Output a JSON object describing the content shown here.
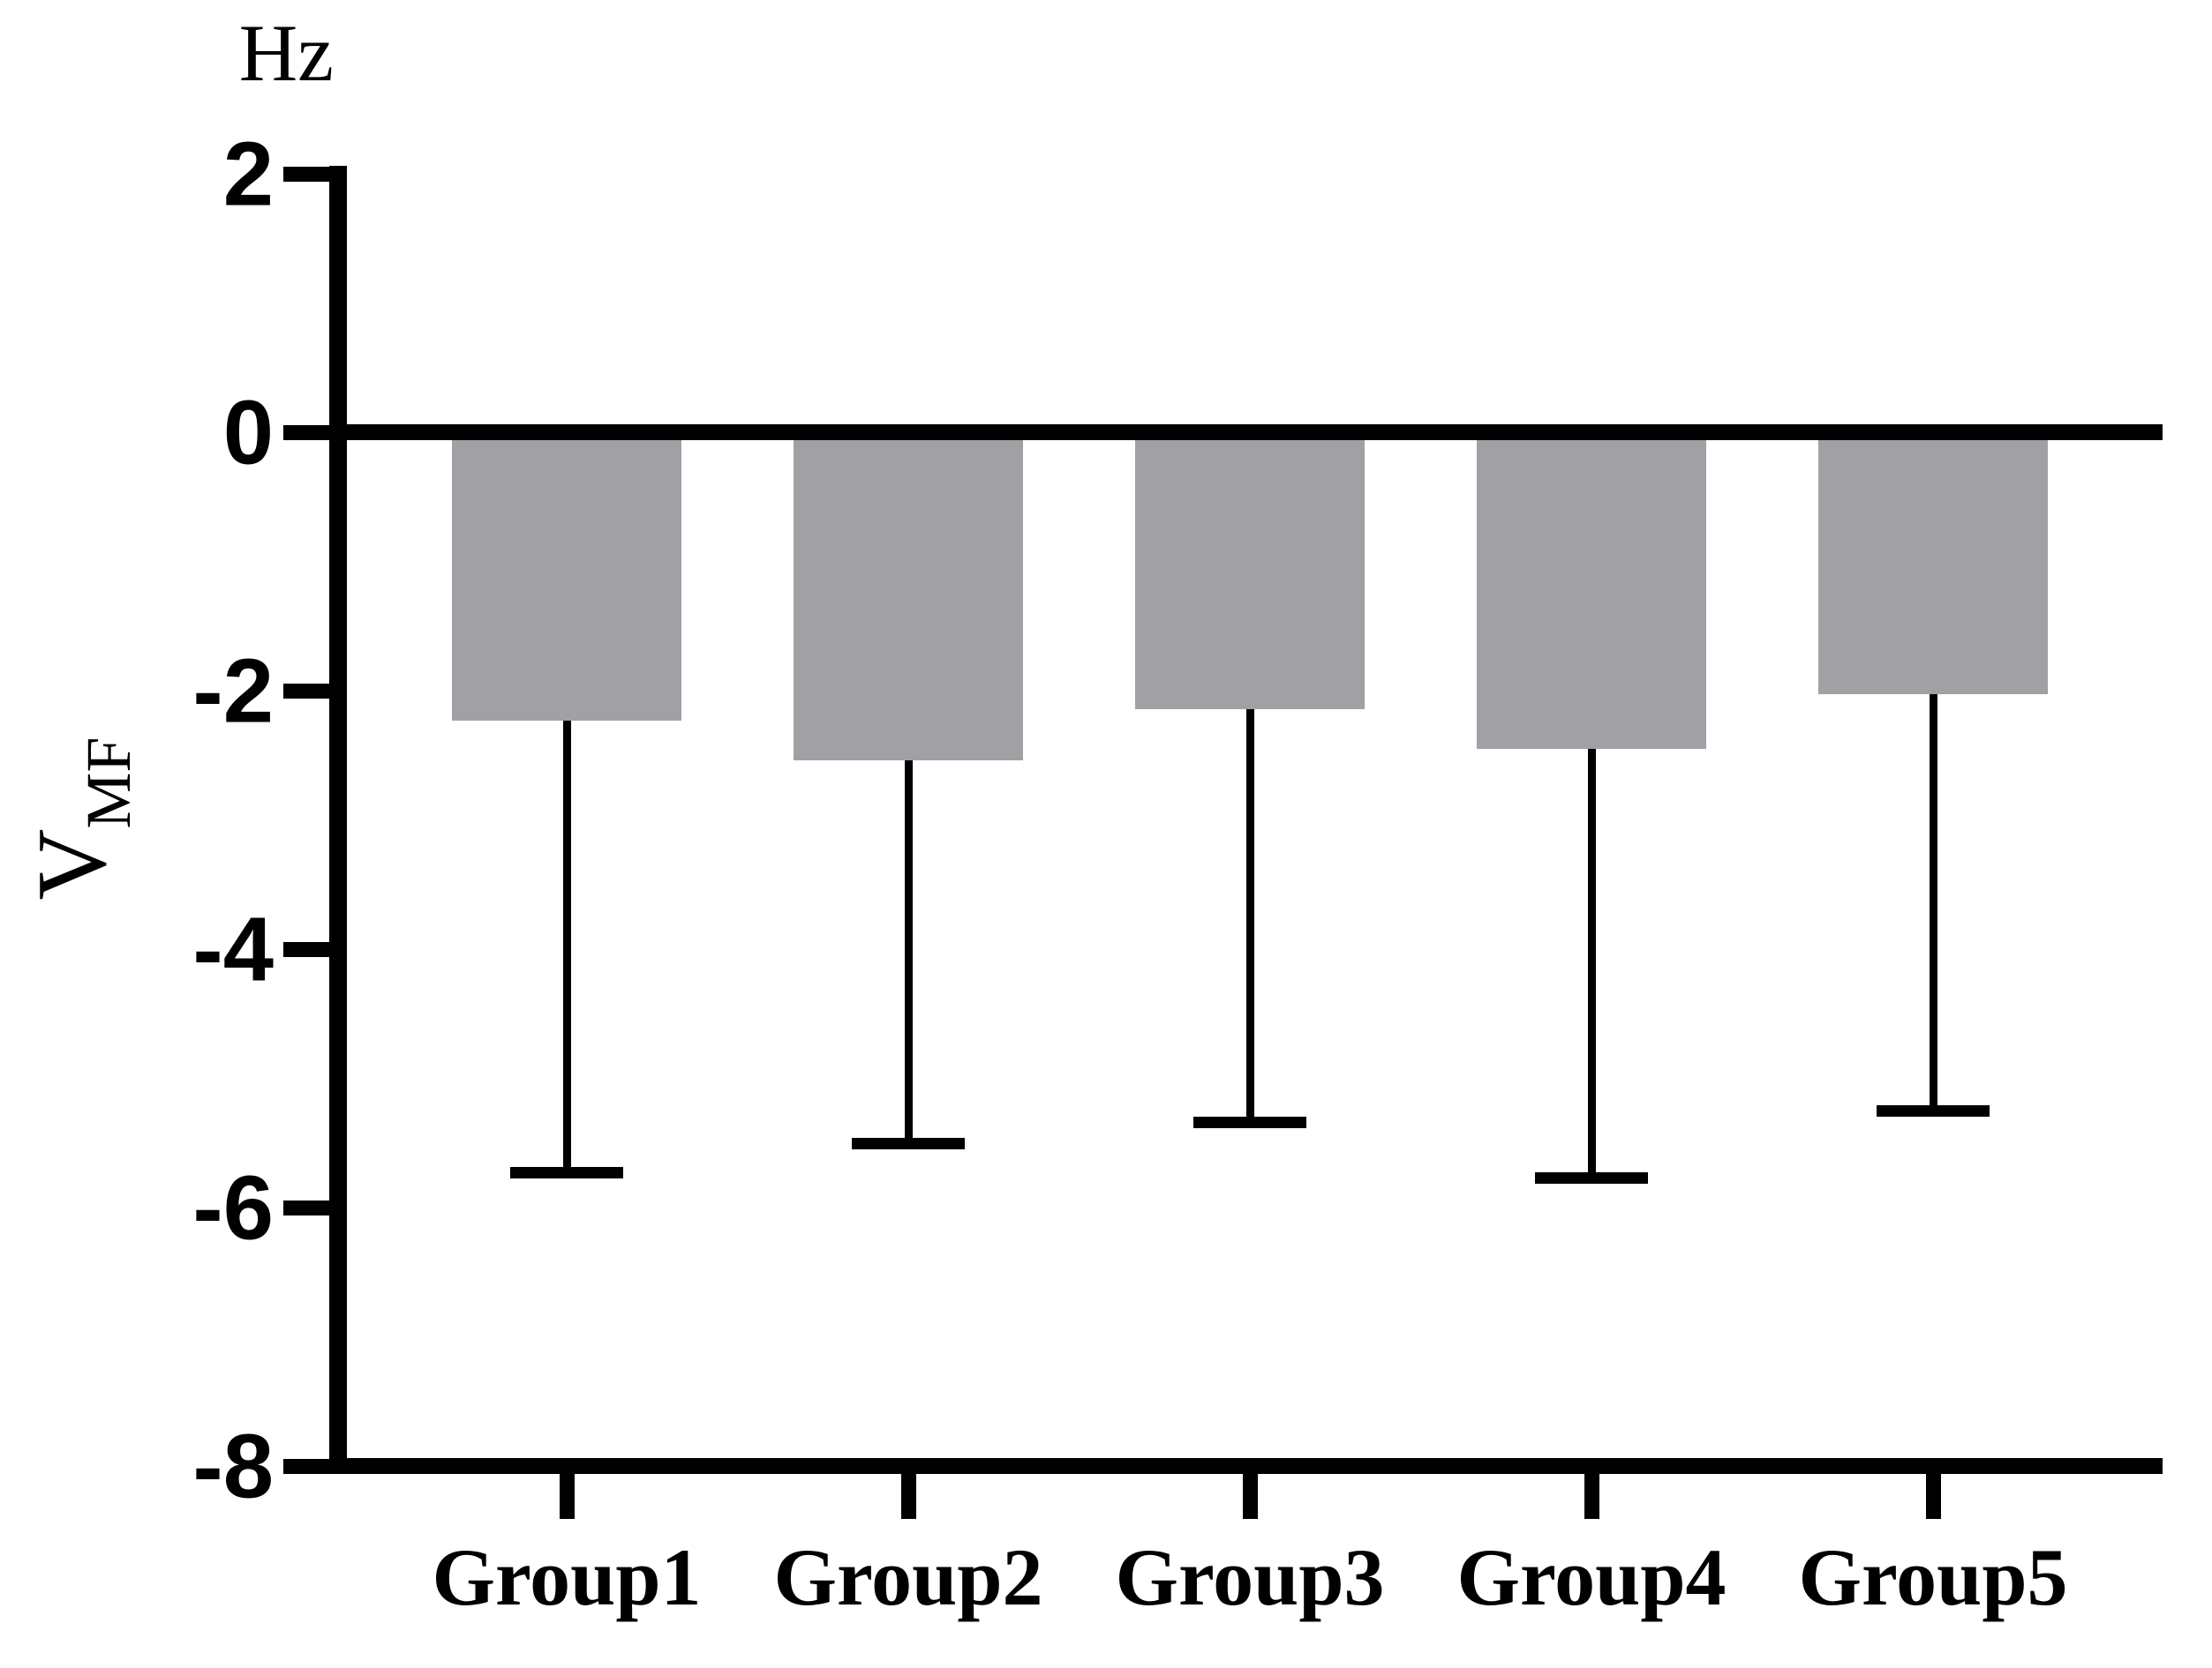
{
  "chart": {
    "unit_label": "Hz",
    "y_axis_title_main": "V",
    "y_axis_title_sub": "MF"
  },
  "chart_data": {
    "type": "bar",
    "orientation": "vertical",
    "title": "",
    "xlabel": "",
    "ylabel": "VMF (Hz)",
    "unit": "Hz",
    "categories": [
      "Group1",
      "Group2",
      "Group3",
      "Group4",
      "Group5"
    ],
    "values": [
      -2.23,
      -2.54,
      -2.14,
      -2.45,
      -2.03
    ],
    "error_low": [
      -5.73,
      -5.5,
      -5.34,
      -5.77,
      -5.25
    ],
    "error_bars": "lower only, capped",
    "ylim": [
      -8,
      2
    ],
    "yticks": [
      2,
      0,
      -2,
      -4,
      -6,
      -8
    ],
    "grid": false,
    "legend": false,
    "bar_color": "#a1a0a5",
    "axis_color": "#000000",
    "background_color": "#ffffff"
  }
}
